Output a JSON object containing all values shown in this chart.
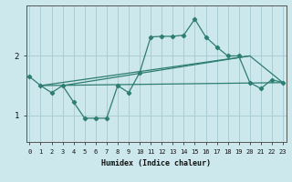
{
  "xlabel": "Humidex (Indice chaleur)",
  "background_color": "#cce8ec",
  "grid_color": "#aacdd4",
  "line_color": "#2e7d72",
  "x_ticks": [
    0,
    1,
    2,
    3,
    4,
    5,
    6,
    7,
    8,
    9,
    10,
    11,
    12,
    13,
    14,
    15,
    16,
    17,
    18,
    19,
    20,
    21,
    22,
    23
  ],
  "y_ticks": [
    1,
    2
  ],
  "ylim": [
    0.55,
    2.85
  ],
  "xlim": [
    -0.3,
    23.3
  ],
  "series1_x": [
    0,
    1,
    2,
    3,
    4,
    5,
    6,
    7,
    8,
    9,
    10,
    11,
    12,
    13,
    14,
    15,
    16,
    17,
    18,
    19,
    20,
    21,
    22,
    23
  ],
  "series1_y": [
    1.65,
    1.5,
    1.38,
    1.5,
    1.22,
    0.95,
    0.95,
    0.95,
    1.5,
    1.38,
    1.72,
    2.32,
    2.33,
    2.33,
    2.35,
    2.62,
    2.32,
    2.15,
    2.0,
    2.0,
    1.55,
    1.45,
    1.6,
    1.55
  ],
  "series2_x": [
    1,
    20,
    23
  ],
  "series2_y": [
    1.5,
    2.0,
    1.55
  ],
  "series3_x": [
    1,
    23
  ],
  "series3_y": [
    1.5,
    1.55
  ],
  "series4_x": [
    3,
    20
  ],
  "series4_y": [
    1.5,
    2.0
  ]
}
